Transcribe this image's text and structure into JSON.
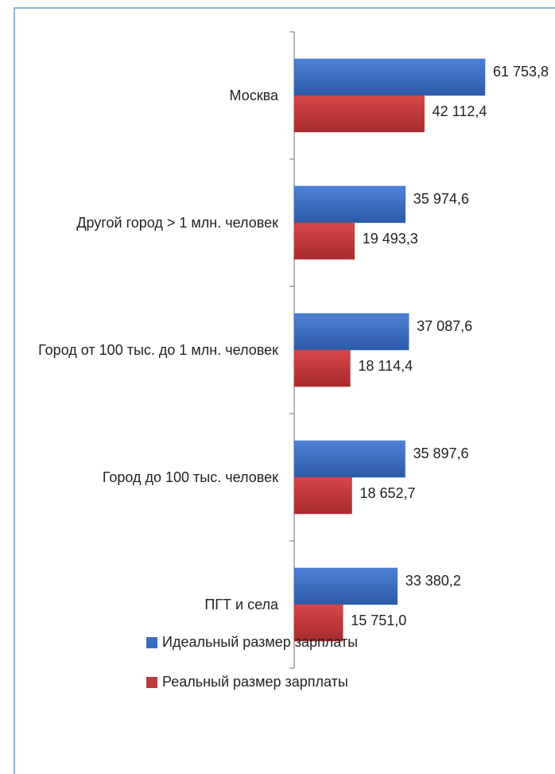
{
  "chart_data": {
    "type": "bar",
    "orientation": "horizontal",
    "categories": [
      "Москва",
      "Другой город > 1 млн. человек",
      "Город от 100 тыс. до 1 млн. человек",
      "Город до 100 тыс. человек",
      "ПГТ и села"
    ],
    "series": [
      {
        "name": "Идеальный размер зарплаты",
        "color": "#3a6cc0",
        "values": [
          61753.8,
          35974.6,
          37087.6,
          35897.6,
          33380.2
        ],
        "value_labels": [
          "61 753,8",
          "35 974,6",
          "37 087,6",
          "35 897,6",
          "33 380,2"
        ]
      },
      {
        "name": "Реальный размер зарплаты",
        "color": "#c0393b",
        "values": [
          42112.4,
          19493.3,
          18114.4,
          18652.7,
          15751.0
        ],
        "value_labels": [
          "42 112,4",
          "19 493,3",
          "18 114,4",
          "18 652,7",
          "15 751,0"
        ]
      }
    ],
    "legend": "bottom"
  }
}
